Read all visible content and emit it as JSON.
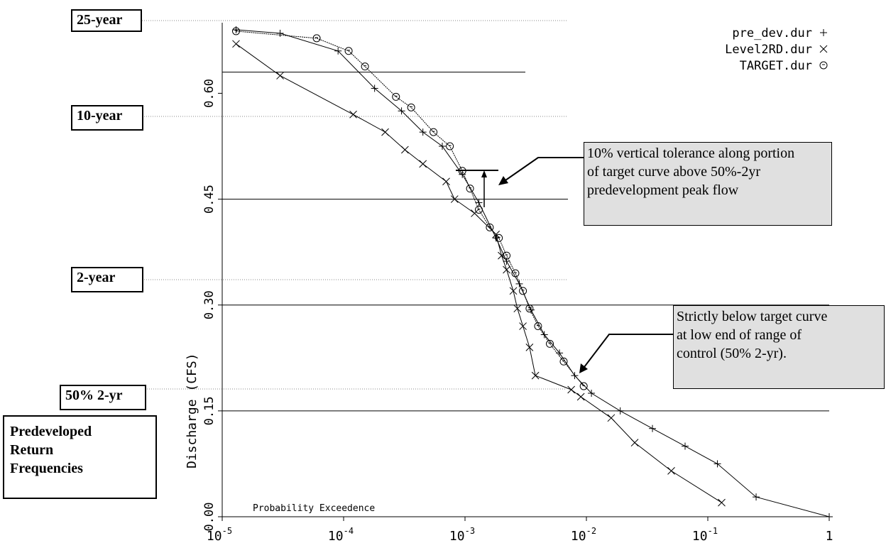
{
  "chart_data": {
    "type": "line",
    "xscale": "log",
    "xlim": [
      1e-05,
      1
    ],
    "ylim": [
      0.0,
      0.7
    ],
    "x_tick_labels": [
      "10-5",
      "10-4",
      "10-3",
      "10-2",
      "10-1",
      "1"
    ],
    "y_tick_labels": [
      "0.00",
      "0.15",
      "0.30",
      "0.45",
      "0.60"
    ],
    "y_ticks": [
      0.0,
      0.15,
      0.3,
      0.45,
      0.6
    ],
    "ylabel": "Discharge (CFS)",
    "xlabel": "Probability Exceedence",
    "legend_position": "top-right",
    "series": [
      {
        "name": "pre_dev.dur",
        "marker": "+",
        "x": [
          1.3e-05,
          3e-05,
          9e-05,
          0.00018,
          0.0003,
          0.00045,
          0.00065,
          0.00095,
          0.0013,
          0.0018,
          0.0022,
          0.0028,
          0.0035,
          0.0045,
          0.006,
          0.008,
          0.011,
          0.019,
          0.035,
          0.065,
          0.12,
          0.25,
          1.0
        ],
        "y": [
          0.69,
          0.685,
          0.66,
          0.607,
          0.575,
          0.545,
          0.525,
          0.485,
          0.445,
          0.395,
          0.362,
          0.33,
          0.293,
          0.258,
          0.232,
          0.2,
          0.175,
          0.15,
          0.125,
          0.1,
          0.075,
          0.028,
          0.0
        ]
      },
      {
        "name": "Level2RD.dur",
        "marker": "×",
        "x": [
          1.3e-05,
          3e-05,
          0.00012,
          0.00022,
          0.00032,
          0.00045,
          0.0007,
          0.00082,
          0.0012,
          0.0018,
          0.002,
          0.0022,
          0.0025,
          0.0027,
          0.003,
          0.0034,
          0.0038,
          0.0075,
          0.009,
          0.016,
          0.025,
          0.05,
          0.13
        ],
        "y": [
          0.67,
          0.625,
          0.57,
          0.545,
          0.52,
          0.5,
          0.475,
          0.45,
          0.43,
          0.4,
          0.37,
          0.35,
          0.32,
          0.295,
          0.27,
          0.24,
          0.2,
          0.18,
          0.17,
          0.14,
          0.105,
          0.065,
          0.02
        ]
      },
      {
        "name": "TARGET.dur",
        "marker": "⊙",
        "x": [
          1.3e-05,
          6e-05,
          0.00011,
          0.00015,
          0.00027,
          0.00036,
          0.00055,
          0.00075,
          0.00095,
          0.0011,
          0.0013,
          0.0016,
          0.0019,
          0.0022,
          0.0026,
          0.003,
          0.0034,
          0.004,
          0.005,
          0.0065,
          0.0095
        ],
        "y": [
          0.688,
          0.678,
          0.66,
          0.638,
          0.595,
          0.58,
          0.545,
          0.525,
          0.49,
          0.465,
          0.435,
          0.41,
          0.395,
          0.37,
          0.345,
          0.32,
          0.295,
          0.27,
          0.245,
          0.22,
          0.185
        ]
      }
    ],
    "reference_lines_y": [
      0.63,
      0.45,
      0.3,
      0.15
    ],
    "return_frequency_levels": [
      {
        "label": "25-year",
        "y": 0.7
      },
      {
        "label": "10-year",
        "y": 0.6
      },
      {
        "label": "2-year",
        "y": 0.34
      },
      {
        "label": "50% 2-yr",
        "y": 0.18
      }
    ],
    "annotations": [
      {
        "lines": [
          "10% vertical tolerance along portion",
          "of target curve above 50%-2yr",
          "predevelopment peak flow"
        ]
      },
      {
        "lines": [
          "Strictly below target curve",
          "at low end of range of",
          "control (50% 2-yr)."
        ]
      }
    ]
  },
  "side_box": {
    "lines": [
      "Predeveloped",
      "Return",
      "Frequencies"
    ]
  }
}
